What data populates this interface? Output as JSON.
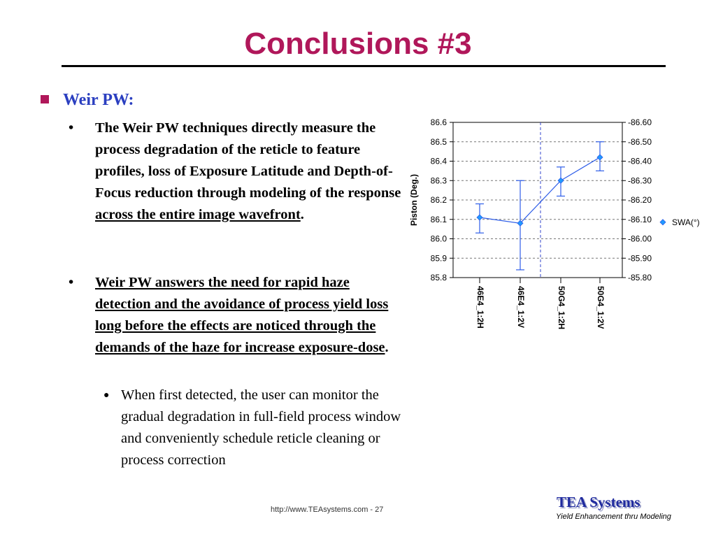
{
  "slide": {
    "title": "Conclusions #3",
    "heading": "Weir PW:",
    "bullet1_a": "The Weir PW techniques directly measure the process degradation of the reticle to feature profiles, loss of Exposure Latitude and Depth-of-Focus reduction through modeling of the response ",
    "bullet1_u": "across the entire image wavefront",
    "bullet1_end": ".",
    "bullet2_u": "Weir PW answers the need for rapid haze detection and the avoidance of process yield loss long before the effects are noticed through the demands of the haze for increase exposure-dose",
    "bullet2_end": ".",
    "sub_bullet": "When first detected, the user can monitor the gradual degradation in full-field process window and conveniently schedule reticle cleaning or process correction",
    "footer_url": "http://www.TEAsystems.com - 27",
    "brand": "TEA Systems",
    "tagline": "Yield Enhancement thru Modeling",
    "colors": {
      "title": "#b0175a",
      "heading": "#2b3fc0",
      "series": "#2f5ee8",
      "brand": "#1f2a9e"
    }
  },
  "chart_data": {
    "type": "line",
    "ylabel": "Piston (Deg.)",
    "categories": [
      "46E4_1:2H",
      "46E4_1:2V",
      "50G4_1:2H",
      "50G4_1:2V"
    ],
    "ylim": [
      85.8,
      86.6
    ],
    "yticks": [
      "86.6",
      "86.5",
      "86.4",
      "86.3",
      "86.2",
      "86.1",
      "86.0",
      "85.9",
      "85.8"
    ],
    "y2lim": [
      -85.8,
      -86.6
    ],
    "y2ticks": [
      "-86.60",
      "-86.50",
      "-86.40",
      "-86.30",
      "-86.20",
      "-86.10",
      "-86.00",
      "-85.90",
      "-85.80"
    ],
    "grid": true,
    "legend": "right",
    "series": [
      {
        "name": "SWA(°)",
        "values": [
          86.11,
          86.08,
          86.3,
          86.42
        ],
        "err_low": [
          86.03,
          85.84,
          86.22,
          86.35
        ],
        "err_high": [
          86.18,
          86.3,
          86.37,
          86.5
        ]
      }
    ]
  }
}
